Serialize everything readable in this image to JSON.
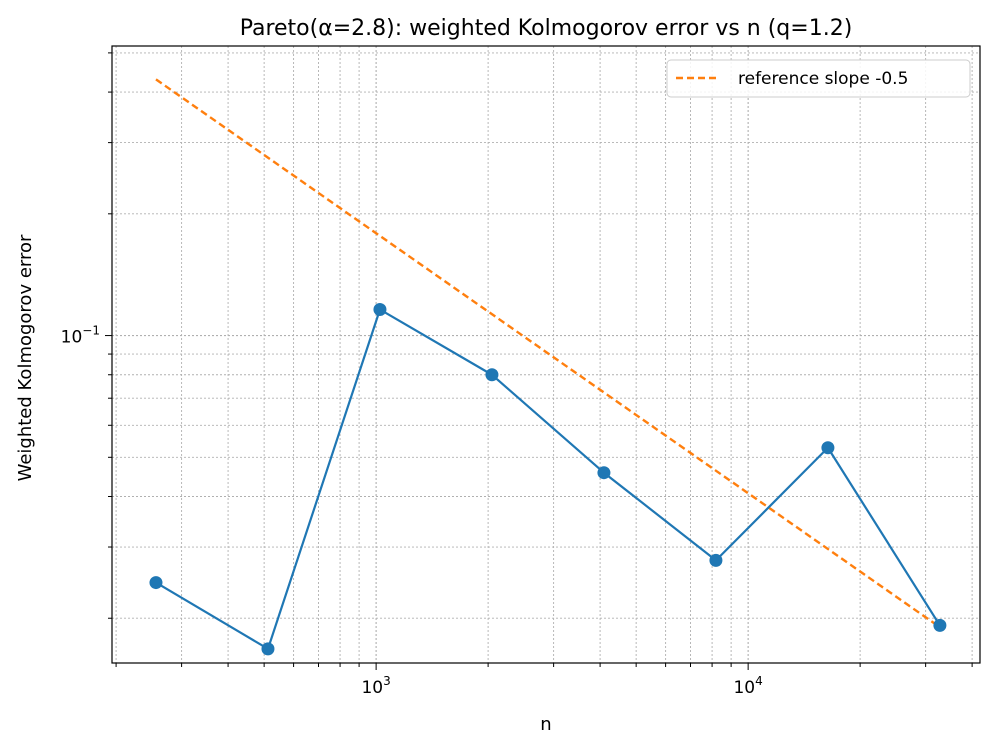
{
  "chart_data": {
    "type": "line",
    "title": "Pareto(α=2.8): weighted Kolmogorov error vs n (q=1.2)",
    "xlabel": "n",
    "ylabel": "Weighted Kolmogorov error",
    "xscale": "log",
    "yscale": "log",
    "xlim": [
      195,
      42000
    ],
    "ylim": [
      0.0155,
      0.52
    ],
    "grid": true,
    "grid_style": "dotted, major and minor",
    "legend_position": "top-right",
    "x_tick_labels": [
      {
        "value": 1000,
        "base": "10",
        "exp": "3"
      },
      {
        "value": 10000,
        "base": "10",
        "exp": "4"
      }
    ],
    "y_tick_labels": [
      {
        "value": 0.1,
        "base": "10",
        "exp": "−1"
      }
    ],
    "series": [
      {
        "name": "",
        "style": "solid line with circle markers",
        "color": "#1f77b4",
        "x": [
          256,
          512,
          1024,
          2048,
          4096,
          8192,
          16384,
          32768
        ],
        "y": [
          0.0245,
          0.0168,
          0.116,
          0.08,
          0.0458,
          0.0278,
          0.0528,
          0.0192
        ]
      },
      {
        "name": "reference slope -0.5",
        "style": "dashed",
        "color": "#ff7f0e",
        "x": [
          256,
          32768
        ],
        "y": [
          0.43,
          0.019
        ]
      }
    ]
  }
}
